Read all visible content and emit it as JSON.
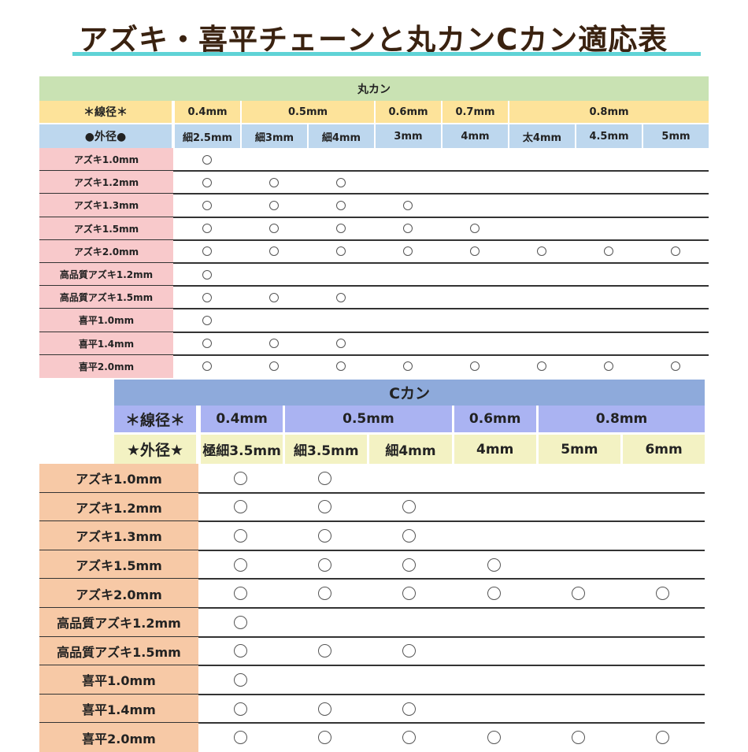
{
  "title": "アズキ・喜平チェーンと丸カンCカン適応表",
  "mark": "○",
  "marukan": {
    "heading": "丸カン",
    "wire_label": "＊線径＊",
    "outer_label": "●外径●",
    "wire_groups": [
      {
        "label": "0.4mm",
        "span": 1
      },
      {
        "label": "0.5mm",
        "span": 2
      },
      {
        "label": "0.6mm",
        "span": 1
      },
      {
        "label": "0.7mm",
        "span": 1
      },
      {
        "label": "0.8mm",
        "span": 3
      }
    ],
    "outer": [
      "細2.5mm",
      "細3mm",
      "細4mm",
      "3mm",
      "4mm",
      "太4mm",
      "4.5mm",
      "5mm"
    ],
    "rows": [
      {
        "label": "アズキ1.0mm",
        "fit": [
          1,
          0,
          0,
          0,
          0,
          0,
          0,
          0
        ]
      },
      {
        "label": "アズキ1.2mm",
        "fit": [
          1,
          1,
          1,
          0,
          0,
          0,
          0,
          0
        ]
      },
      {
        "label": "アズキ1.3mm",
        "fit": [
          1,
          1,
          1,
          1,
          0,
          0,
          0,
          0
        ]
      },
      {
        "label": "アズキ1.5mm",
        "fit": [
          1,
          1,
          1,
          1,
          1,
          0,
          0,
          0
        ]
      },
      {
        "label": "アズキ2.0mm",
        "fit": [
          1,
          1,
          1,
          1,
          1,
          1,
          1,
          1
        ]
      },
      {
        "label": "高品質アズキ1.2mm",
        "fit": [
          1,
          0,
          0,
          0,
          0,
          0,
          0,
          0
        ]
      },
      {
        "label": "高品質アズキ1.5mm",
        "fit": [
          1,
          1,
          1,
          0,
          0,
          0,
          0,
          0
        ]
      },
      {
        "label": "喜平1.0mm",
        "fit": [
          1,
          0,
          0,
          0,
          0,
          0,
          0,
          0
        ]
      },
      {
        "label": "喜平1.4mm",
        "fit": [
          1,
          1,
          1,
          0,
          0,
          0,
          0,
          0
        ]
      },
      {
        "label": "喜平2.0mm",
        "fit": [
          1,
          1,
          1,
          1,
          1,
          1,
          1,
          1
        ]
      }
    ],
    "colors": {
      "heading": "#c9e2b3",
      "wire": "#fde39a",
      "outer": "#bdd7ee",
      "label": "#f8c9cb"
    }
  },
  "ckan": {
    "heading": "Cカン",
    "wire_label": "＊線径＊",
    "outer_label": "★外径★",
    "wire_groups": [
      {
        "label": "0.4mm",
        "span": 1
      },
      {
        "label": "0.5mm",
        "span": 2
      },
      {
        "label": "0.6mm",
        "span": 1
      },
      {
        "label": "0.8mm",
        "span": 2
      }
    ],
    "outer": [
      "極細3.5mm",
      "細3.5mm",
      "細4mm",
      "4mm",
      "5mm",
      "6mm"
    ],
    "rows": [
      {
        "label": "アズキ1.0mm",
        "fit": [
          1,
          1,
          0,
          0,
          0,
          0
        ]
      },
      {
        "label": "アズキ1.2mm",
        "fit": [
          1,
          1,
          1,
          0,
          0,
          0
        ]
      },
      {
        "label": "アズキ1.3mm",
        "fit": [
          1,
          1,
          1,
          0,
          0,
          0
        ]
      },
      {
        "label": "アズキ1.5mm",
        "fit": [
          1,
          1,
          1,
          1,
          0,
          0
        ]
      },
      {
        "label": "アズキ2.0mm",
        "fit": [
          1,
          1,
          1,
          1,
          1,
          1
        ]
      },
      {
        "label": "高品質アズキ1.2mm",
        "fit": [
          1,
          0,
          0,
          0,
          0,
          0
        ]
      },
      {
        "label": "高品質アズキ1.5mm",
        "fit": [
          1,
          1,
          1,
          0,
          0,
          0
        ]
      },
      {
        "label": "喜平1.0mm",
        "fit": [
          1,
          0,
          0,
          0,
          0,
          0
        ]
      },
      {
        "label": "喜平1.4mm",
        "fit": [
          1,
          1,
          1,
          0,
          0,
          0
        ]
      },
      {
        "label": "喜平2.0mm",
        "fit": [
          1,
          1,
          1,
          1,
          1,
          1
        ]
      }
    ],
    "colors": {
      "heading": "#8eaadb",
      "wire": "#aab3f2",
      "outer": "#f3f2c3",
      "label": "#f7c9a6"
    }
  }
}
